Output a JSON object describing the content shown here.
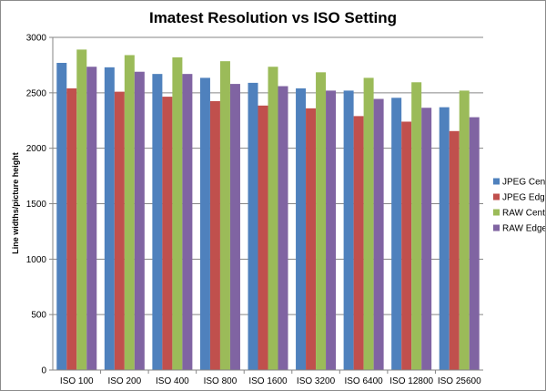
{
  "chart_data": {
    "type": "bar",
    "title": "Imatest Resolution vs ISO Setting",
    "xlabel": "",
    "ylabel": "Line widths/picture height",
    "ylim": [
      0,
      3000
    ],
    "yticks": [
      0,
      500,
      1000,
      1500,
      2000,
      2500,
      3000
    ],
    "grid": true,
    "legend_position": "right",
    "categories": [
      "ISO 100",
      "ISO 200",
      "ISO 400",
      "ISO 800",
      "ISO 1600",
      "ISO 3200",
      "ISO 6400",
      "ISO 12800",
      "ISO 25600"
    ],
    "series": [
      {
        "name": "JPEG Centre",
        "color": "#4F81BD",
        "values": [
          2770,
          2730,
          2670,
          2635,
          2590,
          2540,
          2520,
          2455,
          2370
        ]
      },
      {
        "name": "JPEG Edge",
        "color": "#C0504D",
        "values": [
          2540,
          2510,
          2465,
          2425,
          2385,
          2360,
          2290,
          2240,
          2155
        ]
      },
      {
        "name": "RAW Centre",
        "color": "#9BBB59",
        "values": [
          2890,
          2840,
          2820,
          2785,
          2735,
          2685,
          2635,
          2595,
          2520
        ]
      },
      {
        "name": "RAW Edge",
        "color": "#8064A2",
        "values": [
          2735,
          2690,
          2670,
          2580,
          2560,
          2520,
          2445,
          2365,
          2280
        ]
      }
    ]
  }
}
